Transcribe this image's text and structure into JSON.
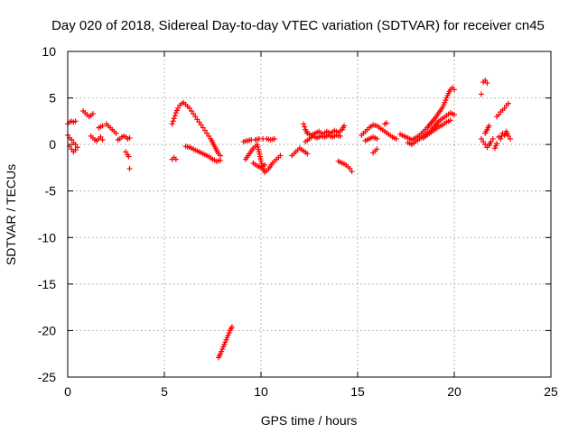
{
  "chart_data": {
    "type": "scatter",
    "title": "Day 020 of 2018, Sidereal Day-to-day VTEC variation (SDTVAR) for receiver cn45",
    "xlabel": "GPS time / hours",
    "ylabel": "SDTVAR / TECUs",
    "xlim": [
      0,
      25
    ],
    "ylim": [
      -25,
      10
    ],
    "xticks": [
      "0",
      "5",
      "10",
      "15",
      "20",
      "25"
    ],
    "yticks": [
      "10",
      "5",
      "0",
      "-5",
      "-10",
      "-15",
      "-20",
      "-25"
    ],
    "grid": true,
    "marker": "+",
    "color": "#ff0000",
    "series": [
      {
        "name": "SDTVAR",
        "segments": [
          [
            [
              0.0,
              2.2
            ],
            [
              0.1,
              2.4
            ],
            [
              0.2,
              2.5
            ],
            [
              0.3,
              2.4
            ],
            [
              0.4,
              2.5
            ]
          ],
          [
            [
              0.0,
              1.0
            ],
            [
              0.1,
              0.7
            ],
            [
              0.2,
              0.5
            ],
            [
              0.3,
              0.2
            ],
            [
              0.4,
              0.0
            ],
            [
              0.5,
              -0.3
            ],
            [
              0.4,
              -0.6
            ],
            [
              0.3,
              -0.8
            ],
            [
              0.2,
              -0.5
            ],
            [
              0.1,
              -0.2
            ]
          ],
          [
            [
              0.8,
              3.6
            ],
            [
              0.9,
              3.4
            ],
            [
              1.0,
              3.2
            ],
            [
              1.1,
              3.0
            ],
            [
              1.2,
              3.1
            ],
            [
              1.3,
              3.3
            ]
          ],
          [
            [
              1.2,
              0.9
            ],
            [
              1.3,
              0.7
            ],
            [
              1.4,
              0.5
            ],
            [
              1.5,
              0.4
            ],
            [
              1.6,
              0.6
            ],
            [
              1.7,
              0.8
            ],
            [
              1.8,
              0.5
            ]
          ],
          [
            [
              1.6,
              1.8
            ],
            [
              1.7,
              1.9
            ],
            [
              1.8,
              2.0
            ]
          ],
          [
            [
              2.0,
              2.2
            ],
            [
              2.1,
              2.0
            ],
            [
              2.2,
              1.8
            ],
            [
              2.3,
              1.6
            ],
            [
              2.4,
              1.4
            ],
            [
              2.5,
              1.2
            ]
          ],
          [
            [
              2.6,
              0.5
            ],
            [
              2.7,
              0.6
            ],
            [
              2.8,
              0.8
            ],
            [
              2.9,
              0.9
            ],
            [
              3.0,
              0.8
            ],
            [
              3.1,
              0.6
            ],
            [
              3.2,
              0.7
            ]
          ],
          [
            [
              3.0,
              -0.8
            ],
            [
              3.1,
              -1.1
            ],
            [
              3.15,
              -1.3
            ]
          ],
          [
            [
              3.2,
              -2.6
            ]
          ],
          [
            [
              5.4,
              -1.6
            ],
            [
              5.5,
              -1.4
            ],
            [
              5.6,
              -1.6
            ]
          ],
          [
            [
              5.4,
              2.2
            ],
            [
              5.5,
              2.8
            ],
            [
              5.6,
              3.4
            ],
            [
              5.7,
              3.9
            ],
            [
              5.8,
              4.2
            ],
            [
              5.9,
              4.4
            ],
            [
              6.0,
              4.5
            ],
            [
              6.1,
              4.3
            ],
            [
              6.2,
              4.1
            ],
            [
              6.3,
              3.9
            ],
            [
              6.4,
              3.6
            ],
            [
              6.5,
              3.3
            ],
            [
              6.6,
              3.0
            ],
            [
              6.7,
              2.7
            ],
            [
              6.8,
              2.4
            ],
            [
              6.9,
              2.1
            ],
            [
              7.0,
              1.8
            ],
            [
              7.1,
              1.5
            ],
            [
              7.2,
              1.2
            ],
            [
              7.3,
              0.9
            ],
            [
              7.4,
              0.6
            ],
            [
              7.5,
              0.2
            ],
            [
              7.6,
              -0.2
            ],
            [
              7.7,
              -0.6
            ],
            [
              7.8,
              -1.0
            ],
            [
              7.9,
              -1.2
            ]
          ],
          [
            [
              6.1,
              -0.2
            ],
            [
              6.3,
              -0.3
            ],
            [
              6.5,
              -0.5
            ],
            [
              6.7,
              -0.7
            ],
            [
              6.9,
              -0.9
            ],
            [
              7.1,
              -1.1
            ],
            [
              7.3,
              -1.3
            ],
            [
              7.5,
              -1.6
            ],
            [
              7.7,
              -1.8
            ],
            [
              7.9,
              -1.7
            ]
          ],
          [
            [
              7.8,
              -22.9
            ],
            [
              7.9,
              -22.5
            ],
            [
              8.0,
              -22.0
            ],
            [
              8.1,
              -21.5
            ],
            [
              8.2,
              -21.0
            ],
            [
              8.3,
              -20.5
            ],
            [
              8.4,
              -20.0
            ],
            [
              8.5,
              -19.6
            ]
          ],
          [
            [
              9.1,
              0.3
            ],
            [
              9.3,
              0.4
            ],
            [
              9.5,
              0.5
            ],
            [
              9.7,
              0.5
            ],
            [
              9.9,
              0.6
            ],
            [
              10.1,
              0.6
            ],
            [
              10.3,
              0.6
            ],
            [
              10.5,
              0.5
            ],
            [
              10.7,
              0.6
            ]
          ],
          [
            [
              9.2,
              -1.6
            ],
            [
              9.4,
              -1.0
            ],
            [
              9.6,
              -0.4
            ],
            [
              9.8,
              0.0
            ],
            [
              9.9,
              -0.8
            ],
            [
              10.0,
              -1.8
            ],
            [
              10.1,
              -2.6
            ],
            [
              10.2,
              -3.0
            ],
            [
              10.4,
              -2.6
            ],
            [
              10.6,
              -2.0
            ],
            [
              10.8,
              -1.6
            ],
            [
              11.0,
              -1.2
            ]
          ],
          [
            [
              9.6,
              -2.0
            ],
            [
              9.8,
              -2.3
            ],
            [
              10.0,
              -2.5
            ],
            [
              10.2,
              -2.2
            ]
          ],
          [
            [
              11.6,
              -1.2
            ],
            [
              11.8,
              -0.8
            ],
            [
              12.0,
              -0.4
            ],
            [
              12.2,
              -0.7
            ],
            [
              12.4,
              -1.0
            ]
          ],
          [
            [
              12.2,
              2.2
            ],
            [
              12.3,
              1.6
            ],
            [
              12.4,
              1.2
            ],
            [
              12.6,
              1.0
            ],
            [
              12.8,
              1.2
            ],
            [
              13.0,
              1.4
            ],
            [
              13.2,
              1.1
            ],
            [
              13.4,
              1.4
            ],
            [
              13.6,
              1.2
            ],
            [
              13.8,
              1.5
            ],
            [
              14.0,
              1.3
            ],
            [
              14.2,
              1.6
            ],
            [
              14.3,
              2.0
            ]
          ],
          [
            [
              12.3,
              0.3
            ],
            [
              12.5,
              0.6
            ],
            [
              12.7,
              0.9
            ],
            [
              12.9,
              0.7
            ],
            [
              13.1,
              0.9
            ],
            [
              13.3,
              0.8
            ],
            [
              13.5,
              1.0
            ],
            [
              13.7,
              0.8
            ],
            [
              13.9,
              1.0
            ],
            [
              14.1,
              0.9
            ]
          ],
          [
            [
              14.0,
              -1.8
            ],
            [
              14.2,
              -2.0
            ],
            [
              14.4,
              -2.2
            ],
            [
              14.6,
              -2.6
            ],
            [
              14.7,
              -2.9
            ]
          ],
          [
            [
              15.2,
              1.0
            ],
            [
              15.4,
              1.4
            ],
            [
              15.6,
              1.8
            ],
            [
              15.8,
              2.1
            ],
            [
              16.0,
              2.0
            ],
            [
              16.2,
              1.7
            ],
            [
              16.4,
              1.4
            ],
            [
              16.6,
              1.1
            ],
            [
              16.8,
              0.8
            ],
            [
              17.0,
              0.6
            ]
          ],
          [
            [
              15.4,
              0.4
            ],
            [
              15.6,
              0.6
            ],
            [
              15.8,
              0.8
            ],
            [
              16.0,
              0.6
            ]
          ],
          [
            [
              15.8,
              -0.9
            ],
            [
              15.9,
              -0.7
            ],
            [
              16.0,
              -0.5
            ]
          ],
          [
            [
              16.4,
              2.2
            ],
            [
              16.5,
              2.3
            ]
          ],
          [
            [
              17.2,
              1.1
            ],
            [
              17.4,
              0.9
            ],
            [
              17.6,
              0.7
            ],
            [
              17.8,
              0.5
            ],
            [
              18.0,
              0.7
            ],
            [
              18.2,
              1.0
            ],
            [
              18.4,
              1.4
            ],
            [
              18.6,
              1.8
            ],
            [
              18.8,
              2.3
            ],
            [
              19.0,
              2.8
            ],
            [
              19.2,
              3.4
            ],
            [
              19.4,
              4.0
            ],
            [
              19.5,
              4.5
            ],
            [
              19.6,
              5.0
            ],
            [
              19.7,
              5.5
            ],
            [
              19.8,
              5.9
            ],
            [
              19.9,
              6.1
            ],
            [
              20.0,
              5.9
            ]
          ],
          [
            [
              17.6,
              0.2
            ],
            [
              17.8,
              0.0
            ],
            [
              18.0,
              0.3
            ],
            [
              18.2,
              0.6
            ],
            [
              18.4,
              0.9
            ],
            [
              18.6,
              1.2
            ],
            [
              18.8,
              1.5
            ],
            [
              19.0,
              2.0
            ],
            [
              19.2,
              2.5
            ],
            [
              19.4,
              2.8
            ],
            [
              19.6,
              3.1
            ],
            [
              19.8,
              3.4
            ],
            [
              20.0,
              3.2
            ]
          ],
          [
            [
              18.4,
              0.7
            ],
            [
              18.6,
              1.0
            ],
            [
              18.8,
              1.3
            ],
            [
              19.0,
              1.6
            ],
            [
              19.2,
              1.9
            ],
            [
              19.4,
              2.1
            ],
            [
              19.6,
              2.4
            ],
            [
              19.8,
              2.6
            ]
          ],
          [
            [
              21.4,
              5.4
            ]
          ],
          [
            [
              21.5,
              6.7
            ],
            [
              21.6,
              6.9
            ],
            [
              21.7,
              6.6
            ]
          ],
          [
            [
              21.4,
              0.6
            ],
            [
              21.5,
              0.3
            ],
            [
              21.6,
              0.0
            ],
            [
              21.7,
              -0.3
            ],
            [
              21.8,
              -0.1
            ],
            [
              21.9,
              0.3
            ],
            [
              22.0,
              0.6
            ]
          ],
          [
            [
              21.6,
              1.2
            ],
            [
              21.7,
              1.6
            ],
            [
              21.8,
              2.0
            ]
          ],
          [
            [
              22.1,
              -0.4
            ],
            [
              22.2,
              0.1
            ]
          ],
          [
            [
              22.2,
              3.0
            ],
            [
              22.3,
              3.2
            ],
            [
              22.4,
              3.5
            ],
            [
              22.5,
              3.7
            ],
            [
              22.6,
              3.9
            ],
            [
              22.7,
              4.2
            ],
            [
              22.8,
              4.4
            ]
          ],
          [
            [
              22.3,
              0.8
            ],
            [
              22.4,
              0.6
            ],
            [
              22.5,
              1.2
            ],
            [
              22.6,
              1.0
            ],
            [
              22.7,
              1.4
            ],
            [
              22.8,
              0.9
            ],
            [
              22.9,
              0.6
            ]
          ]
        ]
      }
    ]
  }
}
